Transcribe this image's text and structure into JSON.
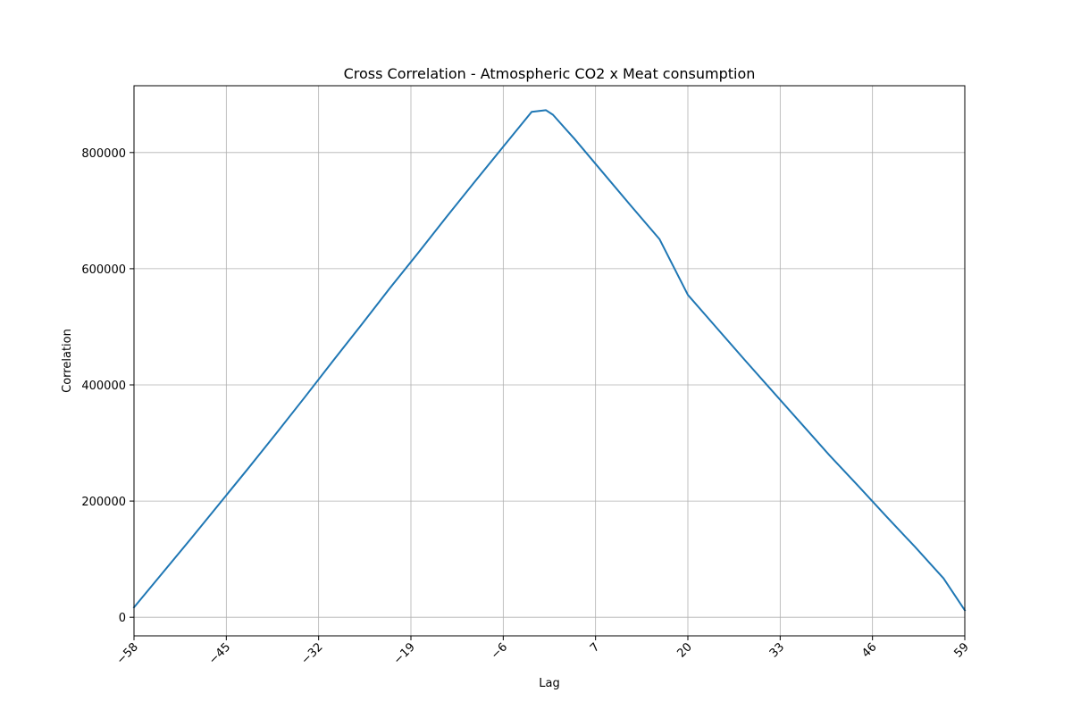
{
  "chart_data": {
    "type": "line",
    "title": "Cross Correlation - Atmospheric CO2 x Meat consumption",
    "xlabel": "Lag",
    "ylabel": "Correlation",
    "xlim": [
      -58,
      59
    ],
    "ylim": [
      -32000,
      915000
    ],
    "grid": true,
    "x_ticks": [
      -58,
      -45,
      -32,
      -19,
      -6,
      7,
      20,
      33,
      46,
      59
    ],
    "x_tick_labels": [
      "−58",
      "−45",
      "−32",
      "−19",
      "−6",
      "7",
      "20",
      "33",
      "46",
      "59"
    ],
    "y_ticks": [
      0,
      200000,
      400000,
      600000,
      800000
    ],
    "y_tick_labels": [
      "0",
      "200000",
      "400000",
      "600000",
      "800000"
    ],
    "colors": {
      "line": "#1f77b4",
      "grid": "#b0b0b0",
      "axes": "#000000"
    },
    "series": [
      {
        "x": [
          -58,
          -54,
          -50,
          -46,
          -42,
          -38,
          -34,
          -30,
          -26,
          -22,
          -18,
          -14,
          -10,
          -6,
          -2,
          0,
          1,
          4,
          8,
          12,
          16,
          20,
          24,
          28,
          32,
          36,
          40,
          44,
          48,
          52,
          56,
          59
        ],
        "values": [
          17000,
          76000,
          135000,
          195000,
          255000,
          316000,
          378000,
          441000,
          503000,
          566000,
          627000,
          689000,
          750000,
          810000,
          870000,
          873000,
          865000,
          824000,
          766000,
          708000,
          651000,
          555000,
          499000,
          443000,
          388000,
          333000,
          278000,
          226000,
          173000,
          121000,
          67000,
          12000
        ]
      }
    ]
  }
}
